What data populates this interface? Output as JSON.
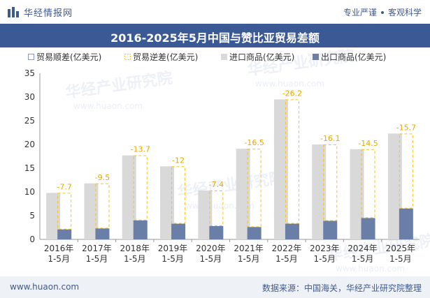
{
  "header": {
    "brand": "华经情报网",
    "tagline_left": "专业严谨",
    "tagline_right": "客观科学"
  },
  "chart_data": {
    "type": "bar",
    "title": "2016-2025年5月中国与赞比亚贸易差额",
    "categories": [
      "2016年\n1-5月",
      "2017年\n1-5月",
      "2018年\n1-5月",
      "2019年\n1-5月",
      "2020年\n1-5月",
      "2021年\n1-5月",
      "2022年\n1-5月",
      "2023年\n1-5月",
      "2024年\n1-5月",
      "2025年\n1-5月"
    ],
    "series": [
      {
        "name": "贸易顺差(亿美元)",
        "values": [
          null,
          null,
          null,
          null,
          null,
          null,
          null,
          null,
          null,
          null
        ]
      },
      {
        "name": "贸易逆差(亿美元)",
        "values": [
          -7.7,
          -9.5,
          -13.7,
          -12,
          -7.4,
          -16.5,
          -26.2,
          -16.1,
          -14.5,
          -15.7
        ]
      },
      {
        "name": "进口商品(亿美元)",
        "values": [
          9.8,
          11.8,
          17.7,
          15.4,
          10.3,
          19.1,
          29.5,
          20.0,
          19.0,
          22.3
        ]
      },
      {
        "name": "出口商品(亿美元)",
        "values": [
          2.1,
          2.3,
          4.0,
          3.3,
          2.8,
          2.6,
          3.3,
          3.9,
          4.5,
          6.5
        ]
      }
    ],
    "data_labels": [
      "-7.7",
      "-9.5",
      "-13.7",
      "-12",
      "-7.4",
      "-16.5",
      "-26.2",
      "-16.1",
      "-14.5",
      "-15.7"
    ],
    "y_ticks": [
      "0",
      "5",
      "10",
      "15",
      "20",
      "25",
      "30",
      "35"
    ],
    "ylim": [
      0,
      35
    ],
    "grid": false,
    "legend_position": "top",
    "colors": {
      "surplus": "#7f9acb",
      "deficit": "#f5c518",
      "import": "#d9d9d9",
      "export": "#6a7fa8",
      "label": "#e8a800"
    }
  },
  "watermark": "华经产业研究院",
  "watermark_url": "www.huaon.com",
  "footer": {
    "url": "www.huaon.com",
    "source": "数据来源：中国海关，华经产业研究院整理"
  }
}
